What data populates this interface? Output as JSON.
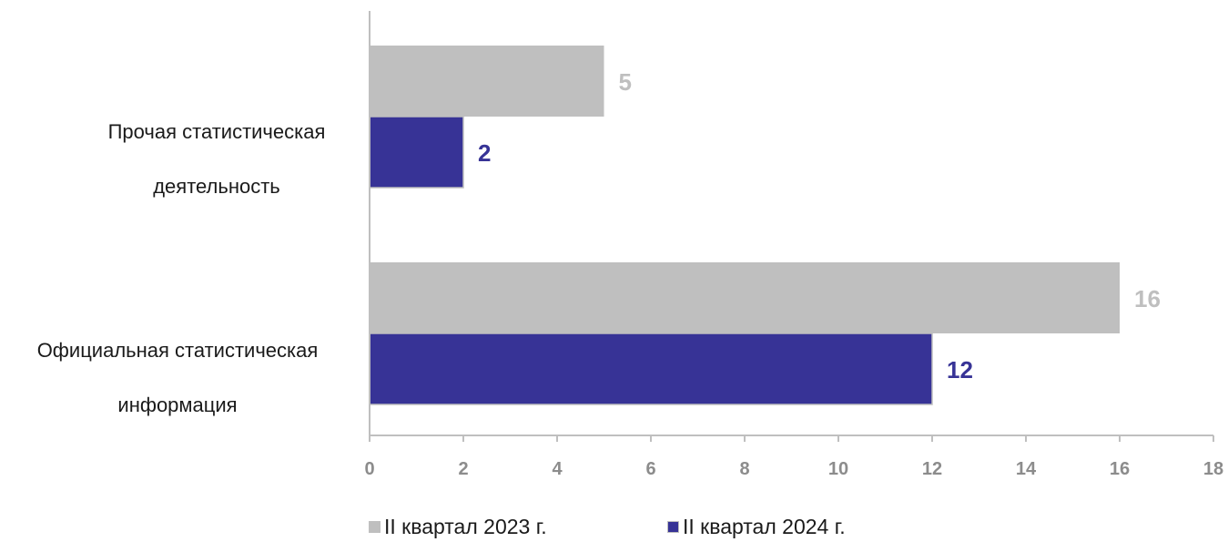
{
  "chart_data": {
    "type": "bar",
    "orientation": "horizontal",
    "categories": [
      "Прочая статистическая деятельность",
      "Официальная статистическая информация"
    ],
    "series": [
      {
        "name": "II квартал 2023 г.",
        "values": [
          5,
          16
        ],
        "color": "#bfbfbf"
      },
      {
        "name": "II квартал 2024 г.",
        "values": [
          2,
          12
        ],
        "color": "#373396"
      }
    ],
    "xlim": [
      0,
      18
    ],
    "xticks": [
      "0",
      "2",
      "4",
      "6",
      "8",
      "10",
      "12",
      "14",
      "16",
      "18"
    ],
    "grid": false,
    "legend": "bottom"
  },
  "labels": {
    "cat0_line1": "Прочая статистическая",
    "cat0_line2": "деятельность",
    "cat1_line1": "Официальная статистическая",
    "cat1_line2": "информация"
  },
  "legend": {
    "s0": "II квартал 2023 г.",
    "s1": "II квартал 2024 г."
  }
}
